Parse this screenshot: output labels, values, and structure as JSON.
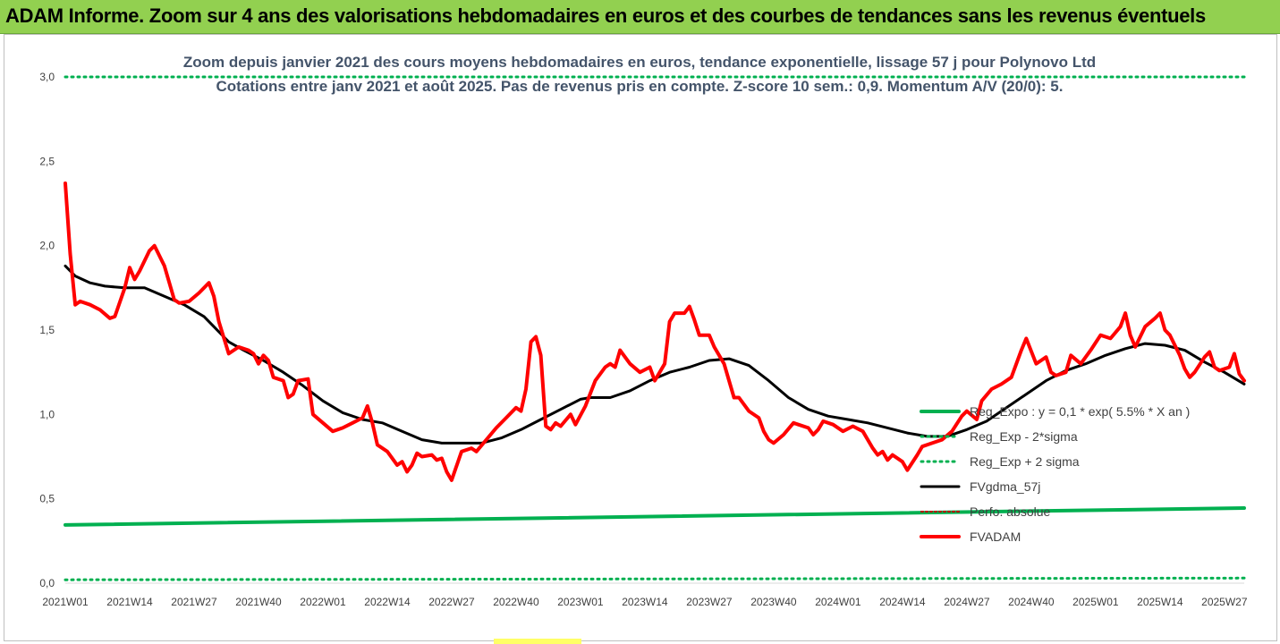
{
  "banner": {
    "title": "ADAM Informe. Zoom sur 4 ans des valorisations hebdomadaires en euros et des courbes de tendances sans les revenus éventuels"
  },
  "colors": {
    "banner_bg": "#92d050",
    "reg_expo": "#00b050",
    "sigma": "#00b050",
    "fvgdma": "#000000",
    "perfo": "#c00000",
    "fvadam": "#ff0000"
  },
  "chart_data": {
    "type": "line",
    "title": "Zoom depuis janvier 2021 des cours moyens hebdomadaires en euros, tendance exponentielle, lissage 57 j pour Polynovo Ltd",
    "subtitle": "Cotations entre janv 2021 et août 2025.  Pas de revenus pris en compte. Z-score 10 sem.: 0,9. Momentum A/V (20/0): 5.",
    "xlabel": "",
    "ylabel": "",
    "ylim": [
      0,
      3
    ],
    "y_ticks": [
      "0,0",
      "0,5",
      "1,0",
      "1,5",
      "2,0",
      "2,5",
      "3,0"
    ],
    "x_ticks": [
      "2021W01",
      "2021W14",
      "2021W27",
      "2021W40",
      "2022W01",
      "2022W14",
      "2022W27",
      "2022W40",
      "2023W01",
      "2023W14",
      "2023W27",
      "2023W40",
      "2024W01",
      "2024W14",
      "2024W27",
      "2024W40",
      "2025W01",
      "2025W14",
      "2025W27"
    ],
    "x_range_weeks": [
      0,
      238
    ],
    "grid": false,
    "legend_position": "bottom-right",
    "series": [
      {
        "name": "Reg_Expo : y = 0,1 * exp( 5.5% *  X  an )",
        "style": "solid",
        "points": [
          [
            0,
            0.345
          ],
          [
            238,
            0.445
          ]
        ]
      },
      {
        "name": "Reg_Exp - 2*sigma",
        "style": "dotted",
        "points": [
          [
            0,
            0.02
          ],
          [
            238,
            0.03
          ]
        ]
      },
      {
        "name": "Reg_Exp + 2 sigma",
        "style": "dotted",
        "points": [
          [
            0,
            3.0
          ],
          [
            238,
            3.0
          ]
        ]
      },
      {
        "name": "FVgdma_57j",
        "style": "solid",
        "points": [
          [
            0,
            1.88
          ],
          [
            2,
            1.82
          ],
          [
            5,
            1.78
          ],
          [
            8,
            1.76
          ],
          [
            12,
            1.75
          ],
          [
            14,
            1.75
          ],
          [
            16,
            1.75
          ],
          [
            20,
            1.7
          ],
          [
            24,
            1.65
          ],
          [
            28,
            1.58
          ],
          [
            30,
            1.52
          ],
          [
            33,
            1.43
          ],
          [
            36,
            1.38
          ],
          [
            40,
            1.32
          ],
          [
            44,
            1.25
          ],
          [
            48,
            1.17
          ],
          [
            52,
            1.08
          ],
          [
            56,
            1.01
          ],
          [
            60,
            0.97
          ],
          [
            64,
            0.95
          ],
          [
            68,
            0.9
          ],
          [
            72,
            0.85
          ],
          [
            76,
            0.83
          ],
          [
            80,
            0.83
          ],
          [
            84,
            0.83
          ],
          [
            88,
            0.86
          ],
          [
            92,
            0.91
          ],
          [
            96,
            0.97
          ],
          [
            100,
            1.03
          ],
          [
            104,
            1.09
          ],
          [
            106,
            1.1
          ],
          [
            110,
            1.1
          ],
          [
            114,
            1.14
          ],
          [
            118,
            1.2
          ],
          [
            122,
            1.25
          ],
          [
            126,
            1.28
          ],
          [
            130,
            1.32
          ],
          [
            134,
            1.33
          ],
          [
            138,
            1.29
          ],
          [
            142,
            1.2
          ],
          [
            146,
            1.1
          ],
          [
            150,
            1.03
          ],
          [
            154,
            0.99
          ],
          [
            158,
            0.97
          ],
          [
            162,
            0.95
          ],
          [
            166,
            0.92
          ],
          [
            170,
            0.89
          ],
          [
            174,
            0.87
          ],
          [
            178,
            0.87
          ],
          [
            182,
            0.91
          ],
          [
            186,
            0.96
          ],
          [
            190,
            1.04
          ],
          [
            194,
            1.12
          ],
          [
            198,
            1.2
          ],
          [
            202,
            1.26
          ],
          [
            206,
            1.3
          ],
          [
            210,
            1.35
          ],
          [
            214,
            1.39
          ],
          [
            218,
            1.42
          ],
          [
            222,
            1.41
          ],
          [
            226,
            1.38
          ],
          [
            230,
            1.31
          ],
          [
            234,
            1.25
          ],
          [
            238,
            1.18
          ]
        ]
      },
      {
        "name": "Perfo. absolue",
        "style": "dotted",
        "points": []
      },
      {
        "name": "FVADAM",
        "style": "solid",
        "points": [
          [
            0,
            2.37
          ],
          [
            1,
            1.95
          ],
          [
            2,
            1.65
          ],
          [
            3,
            1.67
          ],
          [
            5,
            1.65
          ],
          [
            7,
            1.62
          ],
          [
            9,
            1.57
          ],
          [
            10,
            1.58
          ],
          [
            12,
            1.75
          ],
          [
            13,
            1.87
          ],
          [
            14,
            1.8
          ],
          [
            15,
            1.85
          ],
          [
            17,
            1.97
          ],
          [
            18,
            2.0
          ],
          [
            20,
            1.88
          ],
          [
            22,
            1.68
          ],
          [
            23,
            1.66
          ],
          [
            25,
            1.67
          ],
          [
            27,
            1.72
          ],
          [
            29,
            1.78
          ],
          [
            30,
            1.7
          ],
          [
            31,
            1.55
          ],
          [
            33,
            1.36
          ],
          [
            35,
            1.4
          ],
          [
            37,
            1.38
          ],
          [
            38,
            1.36
          ],
          [
            39,
            1.3
          ],
          [
            40,
            1.35
          ],
          [
            41,
            1.32
          ],
          [
            42,
            1.22
          ],
          [
            44,
            1.2
          ],
          [
            45,
            1.1
          ],
          [
            46,
            1.12
          ],
          [
            47,
            1.2
          ],
          [
            49,
            1.21
          ],
          [
            50,
            1.0
          ],
          [
            52,
            0.95
          ],
          [
            54,
            0.9
          ],
          [
            56,
            0.92
          ],
          [
            58,
            0.95
          ],
          [
            60,
            0.98
          ],
          [
            61,
            1.05
          ],
          [
            62,
            0.95
          ],
          [
            63,
            0.82
          ],
          [
            65,
            0.78
          ],
          [
            67,
            0.7
          ],
          [
            68,
            0.72
          ],
          [
            69,
            0.66
          ],
          [
            70,
            0.7
          ],
          [
            71,
            0.77
          ],
          [
            72,
            0.75
          ],
          [
            74,
            0.76
          ],
          [
            75,
            0.73
          ],
          [
            76,
            0.74
          ],
          [
            77,
            0.66
          ],
          [
            78,
            0.61
          ],
          [
            80,
            0.78
          ],
          [
            82,
            0.8
          ],
          [
            83,
            0.78
          ],
          [
            85,
            0.85
          ],
          [
            87,
            0.92
          ],
          [
            89,
            0.98
          ],
          [
            91,
            1.04
          ],
          [
            92,
            1.02
          ],
          [
            93,
            1.15
          ],
          [
            94,
            1.43
          ],
          [
            95,
            1.46
          ],
          [
            96,
            1.35
          ],
          [
            97,
            0.93
          ],
          [
            98,
            0.91
          ],
          [
            99,
            0.95
          ],
          [
            100,
            0.93
          ],
          [
            102,
            1.0
          ],
          [
            103,
            0.94
          ],
          [
            105,
            1.05
          ],
          [
            107,
            1.2
          ],
          [
            109,
            1.28
          ],
          [
            110,
            1.3
          ],
          [
            111,
            1.28
          ],
          [
            112,
            1.38
          ],
          [
            114,
            1.3
          ],
          [
            116,
            1.25
          ],
          [
            118,
            1.28
          ],
          [
            119,
            1.2
          ],
          [
            121,
            1.3
          ],
          [
            122,
            1.55
          ],
          [
            123,
            1.6
          ],
          [
            125,
            1.6
          ],
          [
            126,
            1.64
          ],
          [
            127,
            1.56
          ],
          [
            128,
            1.47
          ],
          [
            130,
            1.47
          ],
          [
            131,
            1.4
          ],
          [
            133,
            1.3
          ],
          [
            135,
            1.1
          ],
          [
            136,
            1.1
          ],
          [
            138,
            1.02
          ],
          [
            140,
            0.98
          ],
          [
            141,
            0.9
          ],
          [
            142,
            0.85
          ],
          [
            143,
            0.83
          ],
          [
            145,
            0.88
          ],
          [
            147,
            0.95
          ],
          [
            148,
            0.94
          ],
          [
            150,
            0.92
          ],
          [
            151,
            0.88
          ],
          [
            152,
            0.91
          ],
          [
            153,
            0.96
          ],
          [
            155,
            0.94
          ],
          [
            157,
            0.9
          ],
          [
            159,
            0.93
          ],
          [
            161,
            0.9
          ],
          [
            163,
            0.8
          ],
          [
            164,
            0.76
          ],
          [
            165,
            0.78
          ],
          [
            166,
            0.73
          ],
          [
            167,
            0.76
          ],
          [
            169,
            0.72
          ],
          [
            170,
            0.67
          ],
          [
            172,
            0.76
          ],
          [
            173,
            0.81
          ],
          [
            175,
            0.83
          ],
          [
            177,
            0.85
          ],
          [
            179,
            0.9
          ],
          [
            181,
            0.99
          ],
          [
            182,
            1.02
          ],
          [
            184,
            0.97
          ],
          [
            185,
            1.08
          ],
          [
            187,
            1.15
          ],
          [
            189,
            1.18
          ],
          [
            191,
            1.22
          ],
          [
            193,
            1.38
          ],
          [
            194,
            1.45
          ],
          [
            196,
            1.3
          ],
          [
            197,
            1.32
          ],
          [
            198,
            1.34
          ],
          [
            199,
            1.25
          ],
          [
            200,
            1.23
          ],
          [
            202,
            1.25
          ],
          [
            203,
            1.35
          ],
          [
            205,
            1.3
          ],
          [
            207,
            1.38
          ],
          [
            209,
            1.47
          ],
          [
            211,
            1.45
          ],
          [
            213,
            1.52
          ],
          [
            214,
            1.6
          ],
          [
            215,
            1.47
          ],
          [
            216,
            1.4
          ],
          [
            218,
            1.52
          ],
          [
            220,
            1.57
          ],
          [
            221,
            1.6
          ],
          [
            222,
            1.5
          ],
          [
            223,
            1.47
          ],
          [
            225,
            1.35
          ],
          [
            226,
            1.27
          ],
          [
            227,
            1.22
          ],
          [
            228,
            1.25
          ],
          [
            230,
            1.34
          ],
          [
            231,
            1.37
          ],
          [
            232,
            1.28
          ],
          [
            233,
            1.26
          ],
          [
            235,
            1.28
          ],
          [
            236,
            1.36
          ],
          [
            237,
            1.24
          ],
          [
            238,
            1.2
          ]
        ]
      }
    ]
  }
}
